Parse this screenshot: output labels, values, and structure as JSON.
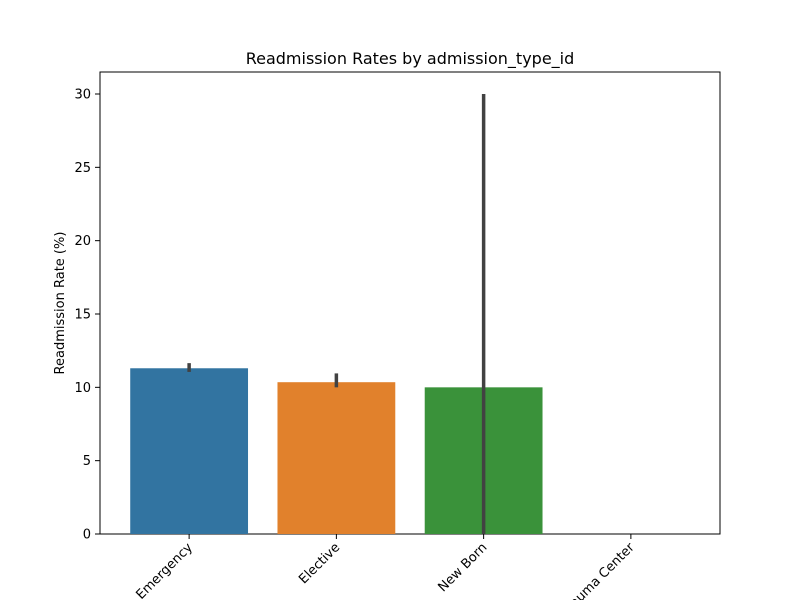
{
  "chart_data": {
    "type": "bar",
    "title": "Readmission Rates by admission_type_id",
    "xlabel": "",
    "ylabel": "Readmission Rate (%)",
    "categories": [
      "Emergency",
      "Elective",
      "New Born",
      "Trauma Center"
    ],
    "values": [
      11.3,
      10.35,
      10.0,
      0
    ],
    "error_bars": [
      [
        11.05,
        11.65
      ],
      [
        10.0,
        10.95
      ],
      [
        0,
        30.0
      ],
      null
    ],
    "colors": [
      "#3274a1",
      "#e1812c",
      "#3a923a",
      "#c03d3e"
    ],
    "error_bar_color": "#424242",
    "ylim": [
      0,
      31.5
    ],
    "yticks": [
      0,
      5,
      10,
      15,
      20,
      25,
      30
    ],
    "grid": false,
    "legend": "none"
  }
}
